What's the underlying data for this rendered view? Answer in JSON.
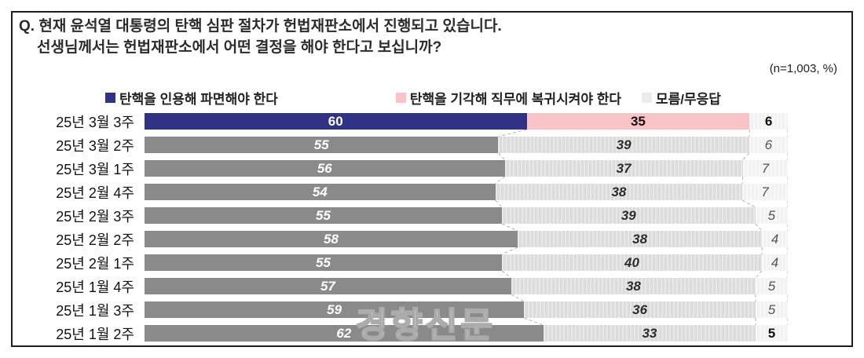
{
  "question": {
    "prefix": "Q.",
    "line1": "현재 윤석열 대통령의 탄핵 심판 절차가 헌법재판소에서 진행되고 있습니다.",
    "line2": "선생님께서는 헌법재판소에서 어떤 결정을 해야 한다고 보십니까?"
  },
  "sample_note": "(n=1,003,  %)",
  "watermark": "경향신문",
  "legend": [
    {
      "label": "탄핵을 인용해 파면해야 한다",
      "color": "#2f3285"
    },
    {
      "label": "탄핵을 기각해 직무에 복귀시켜야 한다",
      "color": "#fac3c8"
    },
    {
      "label": "모름/무응답",
      "color": "#ebebeb"
    }
  ],
  "chart_data": {
    "type": "bar",
    "subtype": "horizontal-stacked",
    "unit": "%",
    "sample_size": "n=1,003",
    "title": "",
    "xlabel": "",
    "ylabel": "",
    "xlim": [
      0,
      100
    ],
    "grid": false,
    "legend_position": "top",
    "highlight_category": "25년 3월 3주",
    "categories": [
      "25년 3월 3주",
      "25년 3월 2주",
      "25년 3월 1주",
      "25년 2월 4주",
      "25년 2월 3주",
      "25년 2월 2주",
      "25년 2월 1주",
      "25년 1월 4주",
      "25년 1월 3주",
      "25년 1월 2주"
    ],
    "series": [
      {
        "name": "탄핵을 인용해 파면해야 한다",
        "color": "#2f3285",
        "values": [
          60,
          55,
          56,
          54,
          55,
          58,
          55,
          57,
          59,
          62
        ]
      },
      {
        "name": "탄핵을 기각해 직무에 복귀시켜야 한다",
        "color": "#fac3c8",
        "values": [
          35,
          39,
          37,
          38,
          39,
          38,
          40,
          38,
          36,
          33
        ]
      },
      {
        "name": "모름/무응답",
        "color": "#f2f2f2",
        "values": [
          6,
          6,
          7,
          7,
          5,
          4,
          4,
          5,
          5,
          5
        ]
      }
    ]
  }
}
